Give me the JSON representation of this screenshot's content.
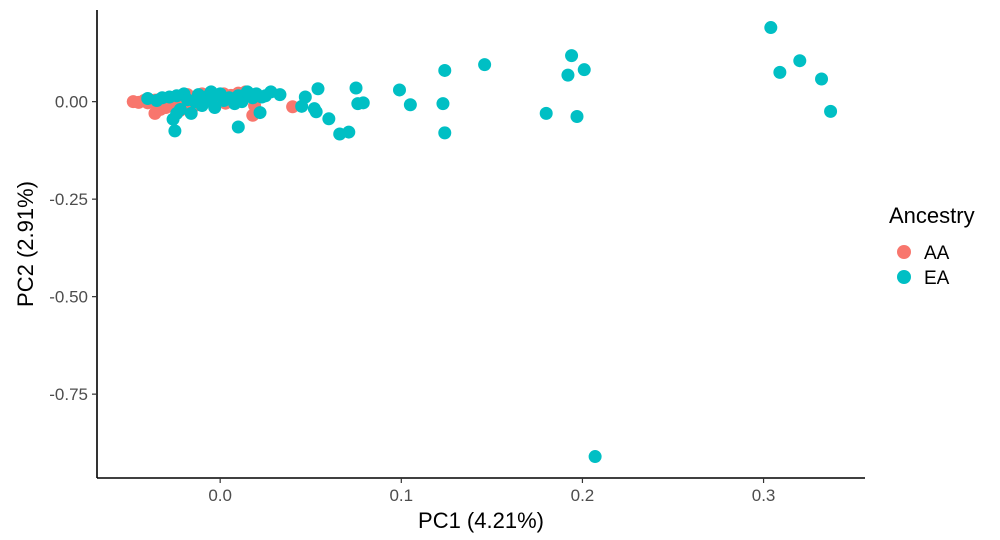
{
  "chart_data": {
    "type": "scatter",
    "title": "",
    "xlabel": "PC1 (4.21%)",
    "ylabel": "PC2 (2.91%)",
    "xlim": [
      -0.068,
      0.356
    ],
    "ylim": [
      -0.965,
      0.235
    ],
    "xticks": [
      0.0,
      0.1,
      0.2,
      0.3
    ],
    "xtick_labels": [
      "0.0",
      "0.1",
      "0.2",
      "0.3"
    ],
    "yticks": [
      0.0,
      -0.25,
      -0.5,
      -0.75
    ],
    "ytick_labels": [
      "0.00",
      "-0.25",
      "-0.50",
      "-0.75"
    ],
    "grid": false,
    "legend": {
      "title": "Ancestry",
      "position": "right"
    },
    "series": [
      {
        "name": "AA",
        "color": "#F8766D",
        "x": [
          -0.048,
          -0.045,
          -0.042,
          -0.04,
          -0.038,
          -0.036,
          -0.035,
          -0.034,
          -0.033,
          -0.032,
          -0.031,
          -0.03,
          -0.029,
          -0.028,
          -0.027,
          -0.026,
          -0.025,
          -0.024,
          -0.023,
          -0.022,
          -0.021,
          -0.02,
          -0.019,
          -0.018,
          -0.016,
          -0.015,
          -0.014,
          -0.012,
          -0.01,
          -0.009,
          -0.008,
          -0.006,
          -0.004,
          -0.002,
          0.0,
          0.002,
          0.004,
          0.006,
          0.008,
          0.01,
          0.012,
          0.014,
          0.018,
          0.02,
          0.04,
          -0.036,
          -0.033,
          -0.03,
          -0.026,
          -0.022,
          -0.018,
          -0.014,
          -0.01,
          -0.005,
          0.003,
          0.019
        ],
        "y": [
          0.0,
          -0.002,
          0.003,
          -0.003,
          0.001,
          0.004,
          -0.008,
          0.005,
          0.0,
          -0.01,
          0.006,
          -0.004,
          0.008,
          0.002,
          -0.006,
          0.01,
          0.0,
          -0.012,
          0.004,
          0.012,
          -0.002,
          0.006,
          0.015,
          -0.003,
          0.01,
          0.002,
          0.008,
          0.015,
          0.005,
          0.012,
          0.0,
          0.01,
          0.018,
          0.005,
          0.012,
          0.02,
          0.008,
          0.016,
          0.0,
          0.022,
          0.01,
          0.025,
          -0.035,
          0.012,
          -0.013,
          -0.03,
          -0.02,
          -0.015,
          -0.005,
          -0.022,
          0.018,
          -0.01,
          0.02,
          0.003,
          -0.004,
          -0.01
        ]
      },
      {
        "name": "EA",
        "color": "#00BFC4",
        "x": [
          -0.04,
          -0.035,
          -0.032,
          -0.028,
          -0.026,
          -0.025,
          -0.024,
          -0.022,
          -0.02,
          -0.018,
          -0.016,
          -0.014,
          -0.012,
          -0.01,
          -0.008,
          -0.005,
          -0.003,
          0.0,
          0.002,
          0.005,
          0.008,
          0.01,
          0.012,
          0.015,
          0.018,
          0.02,
          0.022,
          0.025,
          0.028,
          0.033,
          0.045,
          0.047,
          0.052,
          0.053,
          0.054,
          0.06,
          0.066,
          0.071,
          0.075,
          0.076,
          0.079,
          0.099,
          0.105,
          0.123,
          0.124,
          0.124,
          0.146,
          0.18,
          0.192,
          0.194,
          0.197,
          0.201,
          0.207,
          0.304,
          0.309,
          0.32,
          0.332,
          0.337,
          -0.024,
          0.01,
          -0.005,
          0.023
        ],
        "y": [
          0.008,
          0.003,
          0.01,
          0.012,
          -0.045,
          -0.075,
          0.015,
          -0.02,
          0.02,
          0.005,
          -0.03,
          0.0,
          0.018,
          -0.01,
          0.012,
          0.005,
          -0.015,
          0.02,
          0.003,
          0.01,
          -0.005,
          0.015,
          0.0,
          0.025,
          0.01,
          0.02,
          -0.028,
          0.015,
          0.025,
          0.018,
          -0.012,
          0.012,
          -0.018,
          -0.026,
          0.033,
          -0.044,
          -0.083,
          -0.078,
          0.035,
          -0.005,
          -0.003,
          0.03,
          -0.008,
          -0.005,
          -0.08,
          0.08,
          0.095,
          -0.03,
          0.068,
          0.118,
          -0.038,
          0.082,
          -0.91,
          0.19,
          0.075,
          0.105,
          0.058,
          -0.025,
          -0.03,
          -0.065,
          0.025,
          0.012
        ]
      }
    ]
  }
}
